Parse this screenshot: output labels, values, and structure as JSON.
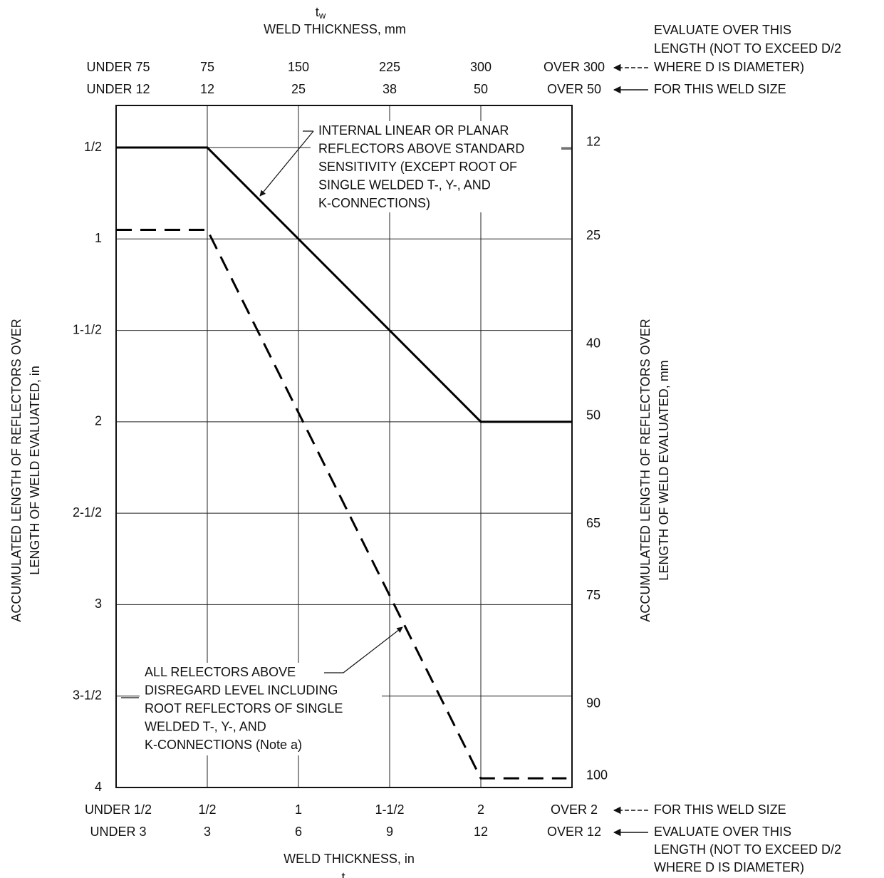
{
  "chart_data": {
    "type": "line",
    "x2_symbol": "t",
    "x2_symbol_sub": "w",
    "x2_title": "WELD THICKNESS, mm",
    "x_title": "WELD THICKNESS, in",
    "x_symbol": "t",
    "y_title": [
      "ACCUMULATED LENGTH OF REFLECTORS OVER",
      "LENGTH OF WELD EVALUATED, in"
    ],
    "y2_title": [
      "ACCUMULATED LENGTH OF REFLECTORS OVER",
      "LENGTH OF WELD EVALUATED, mm"
    ],
    "xlim": [
      0,
      2.5
    ],
    "xticks": [
      {
        "value": 0.5,
        "label": "1/2"
      },
      1,
      {
        "value": 1.5,
        "label": "1-1/2"
      },
      2
    ],
    "x_under_label": "UNDER 1/2",
    "x_over_label": "OVER 2",
    "x_note": "FOR THIS WELD SIZE",
    "ylim": [
      4,
      0.27
    ],
    "yticks": [
      {
        "value": 0.5,
        "label": "1/2"
      },
      1,
      {
        "value": 1.5,
        "label": "1-1/2"
      },
      2,
      {
        "value": 2.5,
        "label": "2-1/2"
      },
      3,
      {
        "value": 3.5,
        "label": "3-1/2"
      },
      4
    ],
    "y2lim": [
      101.6,
      6.86
    ],
    "y2ticks": [
      12,
      25,
      40,
      50,
      65,
      75,
      90,
      100
    ],
    "grid": true,
    "label_rows": [
      {
        "position": "top",
        "labels": [
          "UNDER 75",
          "75",
          "150",
          "225",
          "300",
          "OVER 300"
        ],
        "note": [
          "EVALUATE OVER THIS",
          "LENGTH (NOT TO EXCEED D/2",
          "WHERE D IS DIAMETER)"
        ]
      },
      {
        "position": "top",
        "labels": [
          "UNDER 12",
          "12",
          "25",
          "38",
          "50",
          "OVER 50"
        ],
        "note": [
          "FOR THIS WELD SIZE"
        ]
      },
      {
        "position": "bottom",
        "labels": [
          "UNDER 3",
          "3",
          "6",
          "9",
          "12",
          "OVER 12"
        ],
        "note": [
          "EVALUATE OVER THIS",
          "LENGTH (NOT TO EXCEED D/2",
          "WHERE D IS DIAMETER)"
        ]
      }
    ],
    "series": [
      {
        "style": "solid",
        "color": "#000000",
        "x": [
          0,
          0.5,
          2,
          2.5
        ],
        "values": [
          0.5,
          0.5,
          2,
          2
        ]
      },
      {
        "style": "dashed",
        "color": "#000000",
        "x": [
          0,
          0.5,
          2,
          2.47
        ],
        "values": [
          0.95,
          0.95,
          3.95,
          3.95
        ]
      }
    ],
    "annotations": [
      {
        "lines": [
          "INTERNAL LINEAR OR PLANAR",
          "REFLECTORS ABOVE STANDARD",
          "SENSITIVITY (EXCEPT ROOT OF",
          "SINGLE WELDED T-, Y-, AND",
          "K-CONNECTIONS)"
        ]
      },
      {
        "lines": [
          "ALL RELECTORS ABOVE",
          "DISREGARD LEVEL INCLUDING",
          "ROOT REFLECTORS OF SINGLE",
          "WELDED T-, Y-, AND",
          "K-CONNECTIONS (Note a)"
        ]
      }
    ]
  }
}
